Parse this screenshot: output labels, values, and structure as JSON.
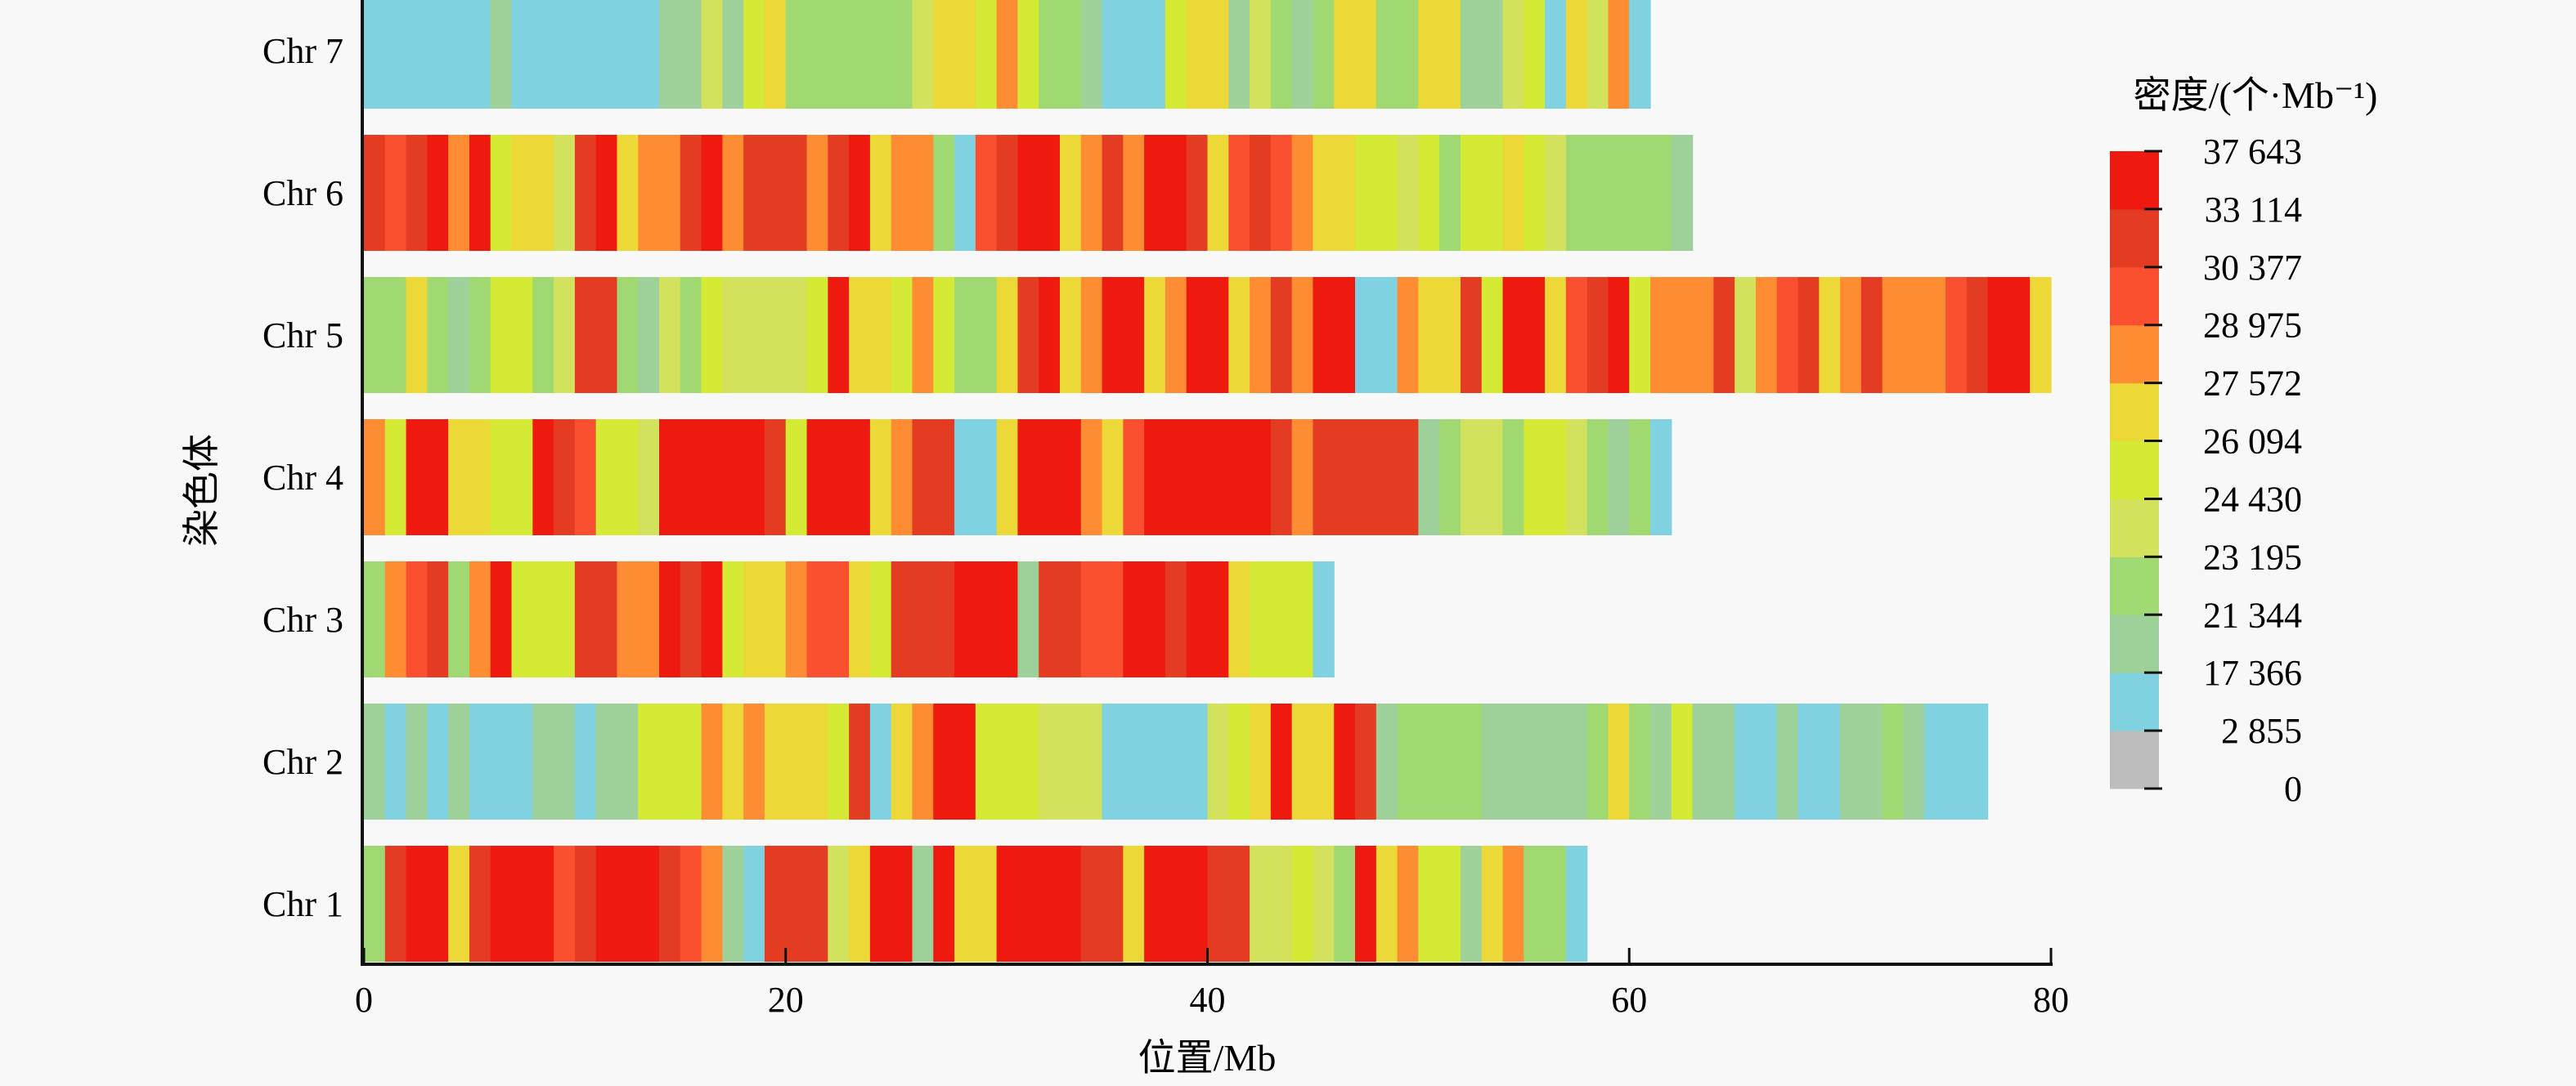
{
  "chart_data": {
    "type": "heatmap",
    "title": "",
    "xlabel": "位置/Mb",
    "ylabel": "染色体",
    "xlim": [
      0,
      80
    ],
    "x_ticks": [
      0,
      20,
      40,
      60,
      80
    ],
    "bin_size_mb": 1,
    "legend": {
      "title": "密度/(个·Mb⁻¹)",
      "placement": "right",
      "boundaries": [
        0,
        2855,
        17366,
        21344,
        23195,
        24430,
        26094,
        27572,
        28975,
        30377,
        33114,
        37643
      ],
      "boundary_labels": [
        "0",
        "2 855",
        "17 366",
        "21 344",
        "23 195",
        "24 430",
        "26 094",
        "27 572",
        "28 975",
        "30 377",
        "33 114",
        "37 643"
      ],
      "colors": [
        "#bdbdbd",
        "#80d2e0",
        "#9ed09a",
        "#a0d872",
        "#d2e25c",
        "#d4ea34",
        "#ecd836",
        "#fe8c32",
        "#fa5030",
        "#e43c22",
        "#ee1a10",
        "#ee1a10"
      ]
    },
    "chromosomes": [
      {
        "name": "Chr 1",
        "length_mb": 58,
        "bins": [
          3,
          9,
          10,
          11,
          6,
          9,
          11,
          11,
          11,
          8,
          9,
          11,
          11,
          10,
          9,
          8,
          7,
          2,
          1,
          9,
          9,
          9,
          4,
          6,
          11,
          10,
          2,
          11,
          6,
          6,
          11,
          10,
          11,
          10,
          9,
          9,
          6,
          11,
          10,
          11,
          9,
          9,
          4,
          4,
          5,
          4,
          3,
          10,
          6,
          7,
          5,
          5,
          2,
          6,
          7,
          3,
          3,
          1
        ]
      },
      {
        "name": "Chr 2",
        "length_mb": 77,
        "bins": [
          2,
          1,
          2,
          1,
          2,
          1,
          1,
          1,
          2,
          2,
          1,
          2,
          2,
          5,
          5,
          5,
          7,
          6,
          7,
          6,
          6,
          6,
          5,
          9,
          1,
          6,
          7,
          11,
          10,
          5,
          5,
          5,
          4,
          4,
          4,
          1,
          1,
          1,
          1,
          1,
          4,
          5,
          6,
          11,
          6,
          6,
          10,
          9,
          2,
          3,
          3,
          3,
          3,
          2,
          2,
          2,
          2,
          2,
          3,
          6,
          3,
          2,
          5,
          2,
          2,
          1,
          1,
          2,
          1,
          1,
          2,
          2,
          3,
          2,
          1,
          1,
          1
        ]
      },
      {
        "name": "Chr 3",
        "length_mb": 46,
        "bins": [
          3,
          7,
          8,
          9,
          3,
          7,
          10,
          5,
          5,
          5,
          9,
          9,
          7,
          7,
          10,
          9,
          10,
          5,
          6,
          6,
          7,
          8,
          8,
          6,
          5,
          9,
          9,
          9,
          10,
          11,
          10,
          2,
          9,
          9,
          8,
          8,
          10,
          11,
          9,
          10,
          11,
          6,
          5,
          5,
          5,
          1
        ]
      },
      {
        "name": "Chr 4",
        "length_mb": 62,
        "bins": [
          7,
          5,
          10,
          11,
          6,
          6,
          5,
          5,
          10,
          9,
          8,
          5,
          5,
          4,
          10,
          10,
          10,
          11,
          10,
          9,
          5,
          10,
          10,
          10,
          6,
          7,
          9,
          9,
          1,
          1,
          6,
          11,
          11,
          10,
          7,
          6,
          8,
          11,
          11,
          10,
          11,
          10,
          11,
          9,
          7,
          9,
          9,
          9,
          9,
          9,
          2,
          3,
          4,
          4,
          3,
          5,
          5,
          4,
          3,
          2,
          3,
          1
        ]
      },
      {
        "name": "Chr 5",
        "length_mb": 80,
        "bins": [
          3,
          3,
          6,
          3,
          2,
          3,
          5,
          5,
          3,
          4,
          9,
          9,
          3,
          2,
          4,
          3,
          5,
          4,
          4,
          4,
          4,
          5,
          10,
          6,
          6,
          5,
          7,
          5,
          3,
          3,
          6,
          9,
          11,
          6,
          7,
          10,
          11,
          6,
          7,
          11,
          11,
          6,
          7,
          9,
          7,
          10,
          10,
          1,
          1,
          7,
          6,
          6,
          9,
          5,
          11,
          10,
          6,
          8,
          9,
          10,
          5,
          7,
          7,
          7,
          9,
          4,
          7,
          8,
          9,
          6,
          7,
          9,
          7,
          7,
          7,
          8,
          9,
          11,
          11,
          6
        ]
      },
      {
        "name": "Chr 6",
        "length_mb": 63,
        "bins": [
          9,
          8,
          9,
          10,
          7,
          10,
          5,
          6,
          6,
          4,
          9,
          10,
          6,
          7,
          7,
          9,
          10,
          7,
          9,
          9,
          9,
          7,
          9,
          10,
          6,
          7,
          7,
          3,
          1,
          8,
          9,
          10,
          11,
          6,
          7,
          9,
          7,
          10,
          11,
          9,
          6,
          8,
          9,
          8,
          7,
          6,
          6,
          5,
          5,
          4,
          5,
          3,
          5,
          5,
          6,
          5,
          4,
          3,
          3,
          3,
          3,
          3,
          2
        ]
      },
      {
        "name": "Chr 7",
        "length_mb": 61,
        "bins": [
          1,
          1,
          1,
          1,
          1,
          1,
          2,
          1,
          1,
          1,
          1,
          1,
          1,
          1,
          2,
          2,
          4,
          2,
          5,
          6,
          3,
          3,
          3,
          3,
          3,
          3,
          4,
          6,
          6,
          5,
          7,
          5,
          3,
          3,
          2,
          1,
          1,
          1,
          5,
          6,
          6,
          2,
          4,
          3,
          2,
          3,
          6,
          6,
          3,
          3,
          6,
          6,
          2,
          2,
          4,
          5,
          1,
          6,
          4,
          7,
          1
        ]
      }
    ]
  }
}
